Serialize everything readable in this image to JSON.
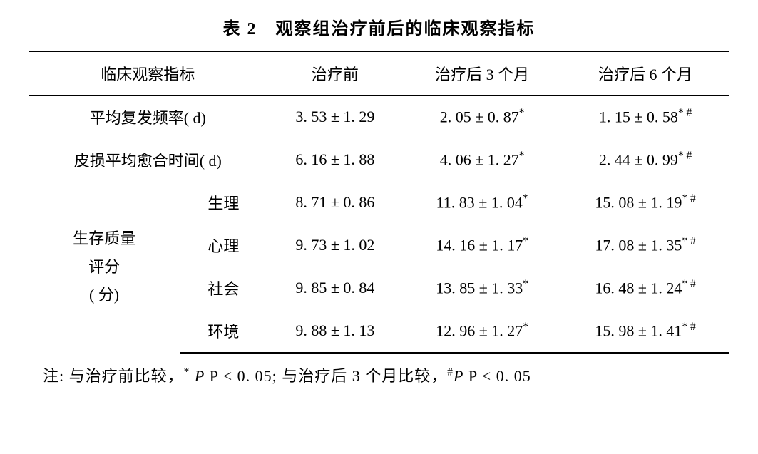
{
  "title": "表 2　观察组治疗前后的临床观察指标",
  "columns": [
    "临床观察指标",
    "治疗前",
    "治疗后 3 个月",
    "治疗后 6 个月"
  ],
  "rows": [
    {
      "label": "平均复发频率( d)",
      "sub": "",
      "c1": "3. 53 ± 1. 29",
      "c2": "2. 05 ± 0. 87",
      "c2sup": "*",
      "c3": "1. 15 ± 0. 58",
      "c3sup": "* #"
    },
    {
      "label": "皮损平均愈合时间( d)",
      "sub": "",
      "c1": "6. 16 ± 1. 88",
      "c2": "4. 06 ± 1. 27",
      "c2sup": "*",
      "c3": "2. 44 ± 0. 99",
      "c3sup": "* #"
    },
    {
      "label": "",
      "sub": "生理",
      "c1": "8. 71 ± 0. 86",
      "c2": "11. 83 ± 1. 04",
      "c2sup": "*",
      "c3": "15. 08 ± 1. 19",
      "c3sup": "* #"
    },
    {
      "label": "",
      "sub": "心理",
      "c1": "9. 73 ± 1. 02",
      "c2": "14. 16 ± 1. 17",
      "c2sup": "*",
      "c3": "17. 08 ± 1. 35",
      "c3sup": "* #"
    },
    {
      "label": "",
      "sub": "社会",
      "c1": "9. 85 ± 0. 84",
      "c2": "13. 85 ± 1. 33",
      "c2sup": "*",
      "c3": "16. 48 ± 1. 24",
      "c3sup": "* #"
    },
    {
      "label": "",
      "sub": "环境",
      "c1": "9. 88 ± 1. 13",
      "c2": "12. 96 ± 1. 27",
      "c2sup": "*",
      "c3": "15. 98 ± 1. 41",
      "c3sup": "* #"
    }
  ],
  "group_label_line1": "生存质量",
  "group_label_line2": "评分",
  "group_label_line3": "( 分)",
  "footnote_prefix": "注: 与治疗前比较，",
  "footnote_star": "*",
  "footnote_p1": "P < 0. 05",
  "footnote_mid": "; 与治疗后 3 个月比较，",
  "footnote_hash": "#",
  "footnote_p2": "P < 0. 05"
}
